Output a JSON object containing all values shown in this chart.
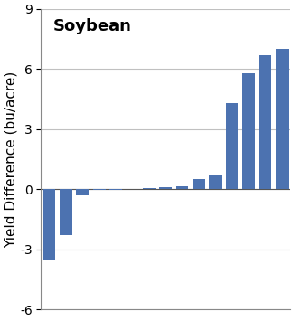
{
  "values": [
    -3.5,
    -2.3,
    -0.3,
    -0.05,
    -0.05,
    0.0,
    0.05,
    0.1,
    0.15,
    0.5,
    0.75,
    4.3,
    5.8,
    6.7,
    7.0
  ],
  "bar_color": "#4C72B0",
  "title": "Soybean",
  "ylabel": "Yield Difference (bu/acre)",
  "ylim": [
    -6,
    9
  ],
  "yticks": [
    -6,
    -3,
    0,
    3,
    6,
    9
  ],
  "title_fontsize": 13,
  "ylabel_fontsize": 11,
  "tick_fontsize": 10,
  "background_color": "#ffffff",
  "grid_color": "#c0c0c0",
  "figsize": [
    3.25,
    3.55
  ],
  "dpi": 100
}
